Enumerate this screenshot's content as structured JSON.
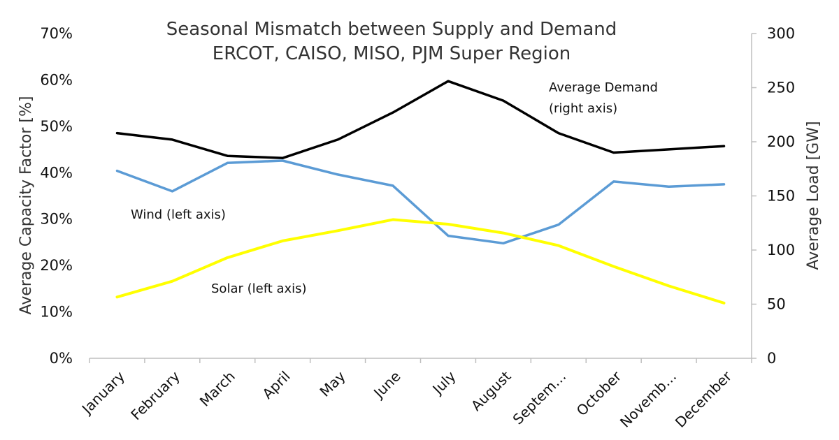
{
  "chart_data": {
    "type": "line",
    "title": "Seasonal Mismatch between Supply and Demand",
    "subtitle": "ERCOT, CAISO, MISO, PJM Super Region",
    "categories": [
      "January",
      "February",
      "March",
      "April",
      "May",
      "June",
      "July",
      "August",
      "Septem…",
      "October",
      "Novemb…",
      "December"
    ],
    "ylabel_left": "Average Capacity Factor [%]",
    "ylabel_right": "Average Load [GW]",
    "ylim_left": [
      0,
      70
    ],
    "ylim_right": [
      0,
      300
    ],
    "yticks_left": [
      "0%",
      "10%",
      "20%",
      "30%",
      "40%",
      "50%",
      "60%",
      "70%"
    ],
    "yticks_right": [
      "0",
      "50",
      "100",
      "150",
      "200",
      "250",
      "300"
    ],
    "grid": false,
    "series": [
      {
        "name": "Average Demand",
        "axis": "right",
        "color": "#000000",
        "values": [
          208,
          202,
          187,
          185,
          202,
          227,
          256,
          238,
          208,
          190,
          193,
          196
        ]
      },
      {
        "name": "Wind",
        "axis": "left",
        "color": "#5b9bd5",
        "values": [
          40.4,
          36.0,
          42.1,
          42.6,
          39.6,
          37.2,
          26.4,
          24.8,
          28.8,
          38.1,
          37.0,
          37.5
        ]
      },
      {
        "name": "Solar",
        "axis": "left",
        "color": "#ffff00",
        "values": [
          13.2,
          16.6,
          21.7,
          25.3,
          27.5,
          29.9,
          28.9,
          27.0,
          24.3,
          19.8,
          15.6,
          11.9
        ]
      }
    ],
    "annotations": {
      "demand_line1": "Average Demand",
      "demand_line2": "(right axis)",
      "wind": "Wind (left axis)",
      "solar": "Solar (left axis)"
    }
  }
}
